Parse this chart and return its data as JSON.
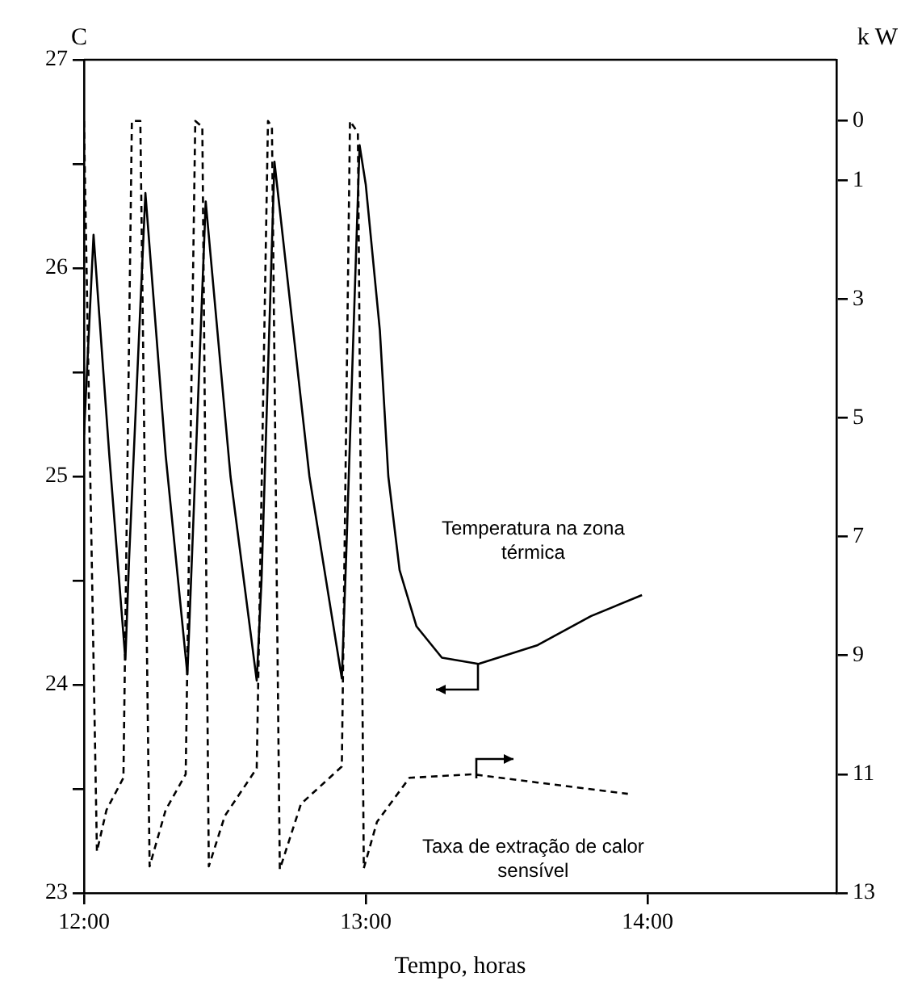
{
  "chart_data": {
    "type": "line",
    "xlabel": "Tempo, horas",
    "ylabel": "C",
    "y2label": "k W",
    "xlim": [
      12,
      14.67
    ],
    "xticks": [
      {
        "value": 12,
        "label": "12:00"
      },
      {
        "value": 13,
        "label": "13:00"
      },
      {
        "value": 14,
        "label": "14:00"
      }
    ],
    "ylim": [
      23,
      27
    ],
    "yticks": [
      23,
      {
        "value": 23.5,
        "label": null
      },
      24,
      {
        "value": 24.5,
        "label": null
      },
      25,
      {
        "value": 25.5,
        "label": null
      },
      26,
      {
        "value": 26.5,
        "label": null
      },
      27
    ],
    "y2lim": [
      13,
      -1.03
    ],
    "y2ticks": [
      0,
      1,
      3,
      5,
      7,
      9,
      11,
      13
    ],
    "grid": false,
    "marker": "none",
    "series": [
      {
        "color": "#000000",
        "line_style": "solid",
        "axis": "y",
        "x": [
          12.0,
          12.034,
          12.09,
          12.147,
          12.16,
          12.218,
          12.29,
          12.367,
          12.38,
          12.432,
          12.52,
          12.613,
          12.63,
          12.676,
          12.8,
          12.915,
          12.93,
          12.978,
          13.0,
          13.05,
          13.08,
          13.12,
          13.18,
          13.27,
          13.4,
          13.61,
          13.8,
          13.98
        ],
        "values": [
          25.2,
          26.16,
          25.1,
          24.12,
          24.6,
          26.36,
          25.1,
          24.05,
          24.5,
          26.32,
          25.0,
          24.02,
          24.5,
          26.51,
          25.0,
          24.03,
          24.6,
          26.59,
          26.4,
          25.7,
          25.0,
          24.55,
          24.28,
          24.13,
          24.1,
          24.19,
          24.33,
          24.43
        ]
      },
      {
        "color": "#000000",
        "line_style": "dashed",
        "axis": "y2",
        "x": [
          12.0,
          12.046,
          12.08,
          12.14,
          12.17,
          12.2,
          12.233,
          12.29,
          12.361,
          12.395,
          12.42,
          12.443,
          12.5,
          12.613,
          12.653,
          12.667,
          12.695,
          12.77,
          12.915,
          12.944,
          12.972,
          12.993,
          13.04,
          13.155,
          13.38,
          13.61,
          13.93
        ],
        "values": [
          0,
          12.3,
          11.6,
          11.06,
          0,
          0,
          12.55,
          11.6,
          11.0,
          0,
          0.1,
          12.55,
          11.7,
          10.9,
          0,
          0.1,
          12.6,
          11.5,
          10.87,
          0,
          0.2,
          12.58,
          11.8,
          11.06,
          11.0,
          11.14,
          11.33
        ]
      }
    ],
    "annotations": [
      "Temperatura na zona térmica",
      "Taxa de extração de calor sensível"
    ]
  }
}
